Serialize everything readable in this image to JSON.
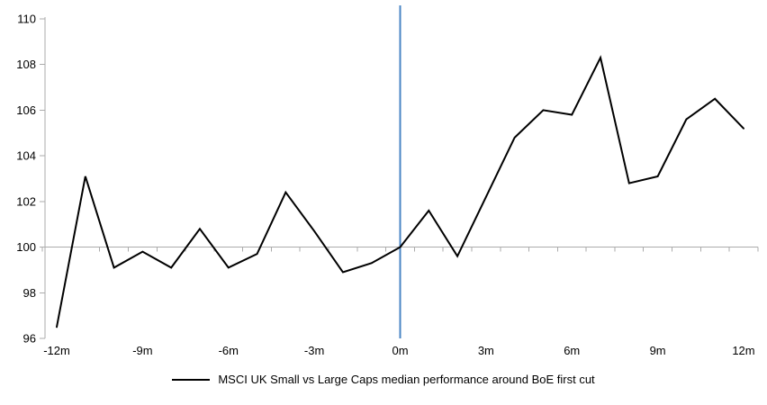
{
  "chart_data": {
    "type": "line",
    "title": "",
    "xlabel": "",
    "ylabel": "",
    "x": [
      -12,
      -11,
      -10,
      -9,
      -8,
      -7,
      -6,
      -5,
      -4,
      -3,
      -2,
      -1,
      0,
      1,
      2,
      3,
      4,
      5,
      6,
      7,
      8,
      9,
      10,
      11,
      12
    ],
    "series": [
      {
        "name": "MSCI UK Small vs Large Caps median performance around BoE first cut",
        "values": [
          96.5,
          103.1,
          99.1,
          99.8,
          99.1,
          100.8,
          99.1,
          99.7,
          102.4,
          100.7,
          98.9,
          99.3,
          100.0,
          101.6,
          99.6,
          102.2,
          104.8,
          106.0,
          105.8,
          108.3,
          102.8,
          103.1,
          105.6,
          106.5,
          105.2
        ]
      }
    ],
    "ylim": [
      96,
      110
    ],
    "ytick_labels": [
      "96",
      "98",
      "100",
      "102",
      "104",
      "106",
      "108",
      "110"
    ],
    "ytick_values": [
      96,
      98,
      100,
      102,
      104,
      106,
      108,
      110
    ],
    "xtick_labels": [
      "-12m",
      "-9m",
      "-6m",
      "-3m",
      "0m",
      "3m",
      "6m",
      "9m",
      "12m"
    ],
    "xtick_positions": [
      -12,
      -9,
      -6,
      -3,
      0,
      3,
      6,
      9,
      12
    ],
    "baseline_value": 100,
    "event_line_x": 0,
    "grid": "off",
    "colors": {
      "series": "#000000",
      "event_line": "#4A85C4",
      "axis": "#ABABAB",
      "baseline": "#ABABAB",
      "text": "#000000"
    },
    "legend": {
      "position": "bottom",
      "label": "MSCI UK Small vs Large Caps median performance around BoE first cut"
    }
  }
}
